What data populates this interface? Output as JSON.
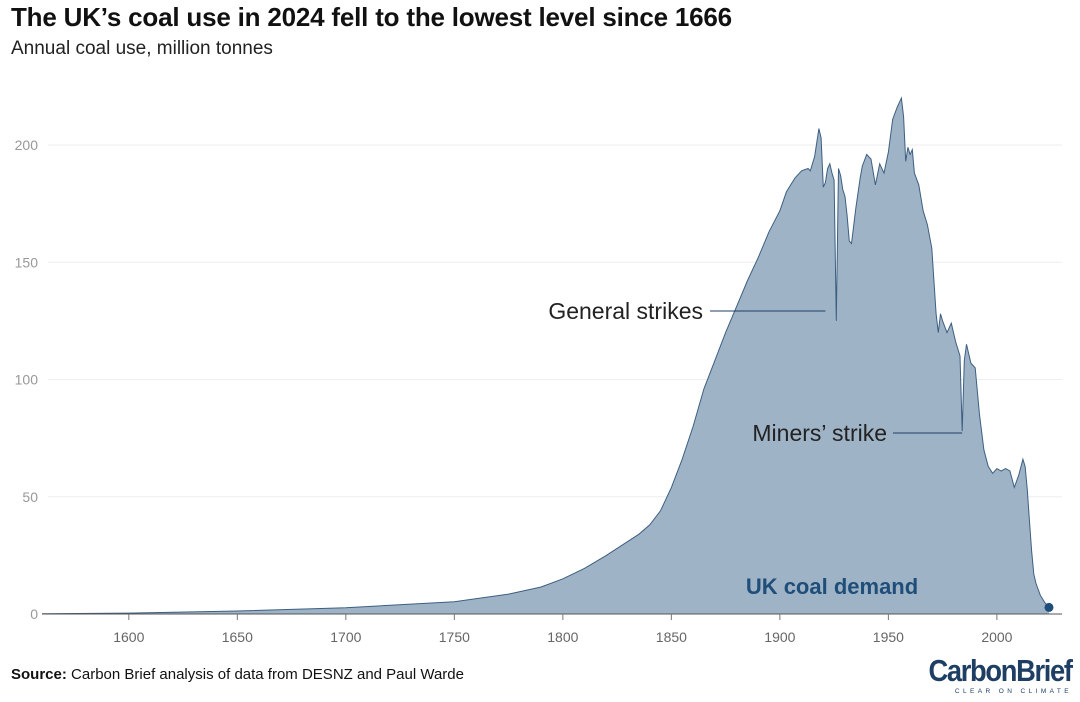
{
  "title": "The UK’s coal use in 2024 fell to the lowest level since 1666",
  "subtitle": "Annual coal use, million tonnes",
  "source": {
    "label": "Source:",
    "text": "Carbon Brief analysis of data from DESNZ and Paul Warde"
  },
  "logo": {
    "name": "CarbonBrief",
    "tagline": "CLEAR ON CLIMATE"
  },
  "colors": {
    "area_fill": "#9fb3c6",
    "area_stroke": "#3d5f80",
    "accent": "#1f4e79",
    "grid": "#eeeeee",
    "tick_text": "#999999"
  },
  "chart_data": {
    "type": "area",
    "title": "The UK’s coal use in 2024 fell to the lowest level since 1666",
    "subtitle": "Annual coal use, million tonnes",
    "xlabel": "",
    "ylabel": "",
    "xlim": [
      1560,
      2030
    ],
    "ylim": [
      0,
      200
    ],
    "x_ticks": [
      1600,
      1650,
      1700,
      1750,
      1800,
      1850,
      1900,
      1950,
      2000
    ],
    "y_ticks": [
      0,
      50,
      100,
      150,
      200
    ],
    "grid": true,
    "series": [
      {
        "name": "UK coal demand",
        "x": [
          1560,
          1600,
          1650,
          1700,
          1750,
          1775,
          1790,
          1800,
          1810,
          1820,
          1830,
          1835,
          1840,
          1845,
          1850,
          1855,
          1860,
          1865,
          1870,
          1875,
          1880,
          1885,
          1890,
          1895,
          1900,
          1903,
          1905,
          1907,
          1910,
          1913,
          1914,
          1916,
          1918,
          1919,
          1920,
          1921,
          1922,
          1923,
          1924,
          1925,
          1926,
          1927,
          1928,
          1929,
          1930,
          1931,
          1932,
          1933,
          1935,
          1937,
          1938,
          1940,
          1942,
          1944,
          1946,
          1948,
          1950,
          1952,
          1954,
          1955,
          1956,
          1957,
          1958,
          1959,
          1960,
          1961,
          1962,
          1964,
          1966,
          1968,
          1970,
          1972,
          1973,
          1974,
          1975,
          1977,
          1979,
          1980,
          1981,
          1983,
          1984,
          1985,
          1986,
          1988,
          1990,
          1992,
          1994,
          1996,
          1998,
          2000,
          2002,
          2004,
          2006,
          2008,
          2010,
          2012,
          2013,
          2014,
          2015,
          2016,
          2017,
          2018,
          2020,
          2022,
          2024
        ],
        "values": [
          0.1,
          0.4,
          1.3,
          2.7,
          5.2,
          8.5,
          11.5,
          15,
          19.5,
          25,
          31,
          34,
          38,
          44,
          54,
          66,
          80,
          96,
          108,
          120,
          131,
          142,
          152,
          163,
          172,
          180,
          183,
          186,
          189,
          190,
          189,
          195,
          207,
          203,
          182,
          184,
          190,
          192,
          188,
          185,
          125,
          190,
          187,
          181,
          178,
          170,
          159,
          158,
          173,
          186,
          191,
          196,
          194,
          183,
          192,
          188,
          197,
          211,
          216,
          218,
          220,
          212,
          193,
          199,
          196,
          198,
          188,
          183,
          172,
          166,
          156,
          128,
          120,
          128,
          125,
          120,
          124,
          120,
          116,
          110,
          78,
          108,
          115,
          107,
          105,
          85,
          70,
          63,
          60,
          62,
          61,
          62,
          61,
          54,
          59,
          66,
          63,
          53,
          40,
          27,
          17,
          13,
          8,
          5,
          2.8
        ]
      }
    ],
    "highlight_point": {
      "x": 2024,
      "y": 2.8
    },
    "annotations": [
      {
        "text": "General strikes",
        "x1": 1921,
        "y1": 130,
        "x2": 1926,
        "y2": 125
      },
      {
        "text": "Miners’ strike",
        "x1": 1984,
        "y1": 78
      }
    ],
    "series_label": "UK coal demand"
  }
}
